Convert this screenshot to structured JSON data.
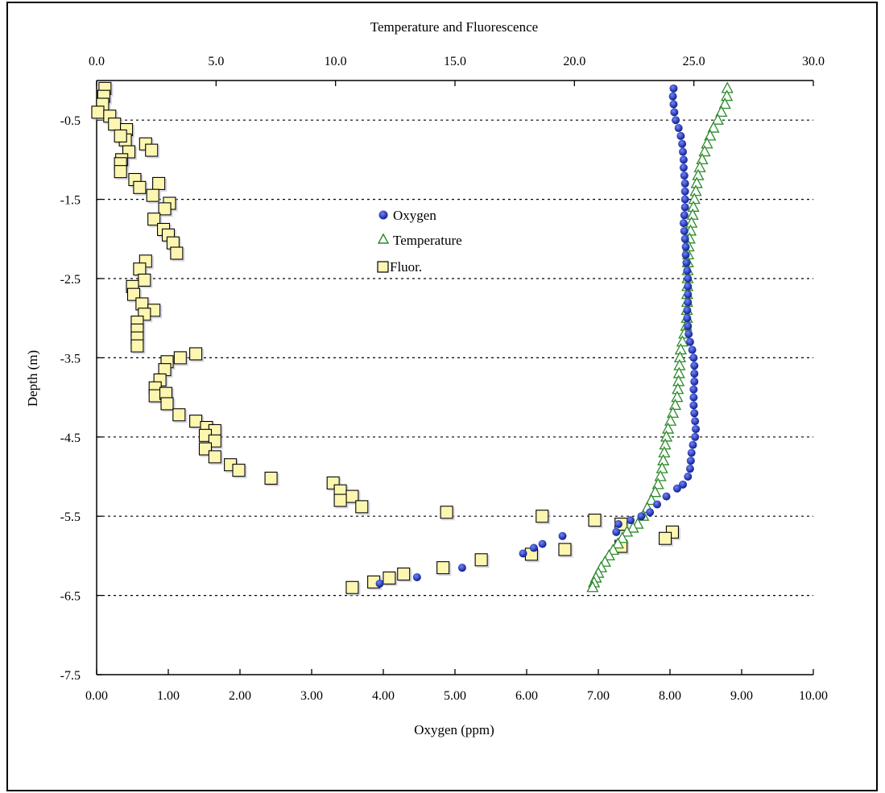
{
  "chart_data": {
    "type": "scatter",
    "title": "",
    "top_axis": {
      "label": "Temperature and Fluorescence",
      "lim": [
        0,
        30
      ],
      "ticks": [
        "0.0",
        "5.0",
        "10.0",
        "15.0",
        "20.0",
        "25.0",
        "30.0"
      ],
      "tick_values": [
        0,
        5,
        10,
        15,
        20,
        25,
        30
      ]
    },
    "bottom_axis": {
      "label": "Oxygen (ppm)",
      "lim": [
        0,
        10
      ],
      "ticks": [
        "0.00",
        "1.00",
        "2.00",
        "3.00",
        "4.00",
        "5.00",
        "6.00",
        "7.00",
        "8.00",
        "9.00",
        "10.00"
      ],
      "tick_values": [
        0,
        1,
        2,
        3,
        4,
        5,
        6,
        7,
        8,
        9,
        10
      ]
    },
    "y_axis": {
      "label": "Depth (m)",
      "lim": [
        -7.5,
        0
      ],
      "ticks": [
        "-0.5",
        "-1.5",
        "-2.5",
        "-3.5",
        "-4.5",
        "-5.5",
        "-6.5",
        "-7.5"
      ],
      "tick_values": [
        -0.5,
        -1.5,
        -2.5,
        -3.5,
        -4.5,
        -5.5,
        -6.5,
        -7.5
      ]
    },
    "grid": "horizontal dotted at labeled depths",
    "legend_placement": "center-upper",
    "series": [
      {
        "name": "Oxygen",
        "axis": "bottom",
        "marker": "circle",
        "color": "#1b2aa8",
        "points": [
          [
            8.05,
            -0.1
          ],
          [
            8.04,
            -0.2
          ],
          [
            8.05,
            -0.3
          ],
          [
            8.06,
            -0.4
          ],
          [
            8.08,
            -0.5
          ],
          [
            8.12,
            -0.6
          ],
          [
            8.15,
            -0.7
          ],
          [
            8.17,
            -0.8
          ],
          [
            8.18,
            -0.9
          ],
          [
            8.19,
            -1.0
          ],
          [
            8.19,
            -1.1
          ],
          [
            8.2,
            -1.2
          ],
          [
            8.21,
            -1.3
          ],
          [
            8.21,
            -1.4
          ],
          [
            8.21,
            -1.5
          ],
          [
            8.21,
            -1.6
          ],
          [
            8.2,
            -1.7
          ],
          [
            8.19,
            -1.8
          ],
          [
            8.2,
            -1.9
          ],
          [
            8.21,
            -2.0
          ],
          [
            8.22,
            -2.1
          ],
          [
            8.22,
            -2.2
          ],
          [
            8.23,
            -2.3
          ],
          [
            8.24,
            -2.4
          ],
          [
            8.25,
            -2.5
          ],
          [
            8.25,
            -2.6
          ],
          [
            8.25,
            -2.7
          ],
          [
            8.25,
            -2.8
          ],
          [
            8.24,
            -2.9
          ],
          [
            8.24,
            -3.0
          ],
          [
            8.25,
            -3.1
          ],
          [
            8.26,
            -3.2
          ],
          [
            8.28,
            -3.3
          ],
          [
            8.31,
            -3.4
          ],
          [
            8.33,
            -3.5
          ],
          [
            8.34,
            -3.6
          ],
          [
            8.34,
            -3.7
          ],
          [
            8.34,
            -3.8
          ],
          [
            8.33,
            -3.9
          ],
          [
            8.33,
            -4.0
          ],
          [
            8.33,
            -4.1
          ],
          [
            8.34,
            -4.2
          ],
          [
            8.35,
            -4.3
          ],
          [
            8.36,
            -4.4
          ],
          [
            8.35,
            -4.5
          ],
          [
            8.32,
            -4.6
          ],
          [
            8.3,
            -4.7
          ],
          [
            8.29,
            -4.8
          ],
          [
            8.28,
            -4.9
          ],
          [
            8.25,
            -5.0
          ],
          [
            8.18,
            -5.1
          ],
          [
            8.1,
            -5.15
          ],
          [
            7.95,
            -5.25
          ],
          [
            7.82,
            -5.35
          ],
          [
            7.72,
            -5.45
          ],
          [
            7.6,
            -5.5
          ],
          [
            7.45,
            -5.55
          ],
          [
            7.28,
            -5.6
          ],
          [
            7.25,
            -5.7
          ],
          [
            6.5,
            -5.75
          ],
          [
            6.22,
            -5.85
          ],
          [
            6.1,
            -5.9
          ],
          [
            5.95,
            -5.97
          ],
          [
            5.1,
            -6.15
          ],
          [
            4.47,
            -6.27
          ],
          [
            3.95,
            -6.35
          ]
        ]
      },
      {
        "name": "Temperature",
        "axis": "top",
        "marker": "triangle",
        "color": "#2a8a2a",
        "points": [
          [
            26.4,
            -0.1
          ],
          [
            26.38,
            -0.2
          ],
          [
            26.3,
            -0.3
          ],
          [
            26.15,
            -0.4
          ],
          [
            26.0,
            -0.5
          ],
          [
            25.82,
            -0.6
          ],
          [
            25.68,
            -0.7
          ],
          [
            25.55,
            -0.8
          ],
          [
            25.45,
            -0.9
          ],
          [
            25.35,
            -1.0
          ],
          [
            25.25,
            -1.1
          ],
          [
            25.18,
            -1.2
          ],
          [
            25.12,
            -1.3
          ],
          [
            25.08,
            -1.4
          ],
          [
            25.02,
            -1.5
          ],
          [
            24.98,
            -1.6
          ],
          [
            24.95,
            -1.7
          ],
          [
            24.9,
            -1.8
          ],
          [
            24.86,
            -1.9
          ],
          [
            24.82,
            -2.0
          ],
          [
            24.78,
            -2.1
          ],
          [
            24.76,
            -2.2
          ],
          [
            24.75,
            -2.3
          ],
          [
            24.74,
            -2.4
          ],
          [
            24.74,
            -2.5
          ],
          [
            24.73,
            -2.6
          ],
          [
            24.72,
            -2.7
          ],
          [
            24.72,
            -2.8
          ],
          [
            24.71,
            -2.9
          ],
          [
            24.71,
            -3.0
          ],
          [
            24.68,
            -3.1
          ],
          [
            24.6,
            -3.2
          ],
          [
            24.52,
            -3.3
          ],
          [
            24.45,
            -3.4
          ],
          [
            24.42,
            -3.5
          ],
          [
            24.4,
            -3.6
          ],
          [
            24.38,
            -3.7
          ],
          [
            24.36,
            -3.8
          ],
          [
            24.33,
            -3.9
          ],
          [
            24.3,
            -4.0
          ],
          [
            24.22,
            -4.1
          ],
          [
            24.12,
            -4.2
          ],
          [
            24.02,
            -4.3
          ],
          [
            23.92,
            -4.4
          ],
          [
            23.85,
            -4.5
          ],
          [
            23.8,
            -4.6
          ],
          [
            23.76,
            -4.7
          ],
          [
            23.72,
            -4.8
          ],
          [
            23.67,
            -4.9
          ],
          [
            23.6,
            -5.0
          ],
          [
            23.5,
            -5.1
          ],
          [
            23.38,
            -5.2
          ],
          [
            23.22,
            -5.3
          ],
          [
            23.05,
            -5.4
          ],
          [
            22.88,
            -5.5
          ],
          [
            22.65,
            -5.6
          ],
          [
            22.45,
            -5.65
          ],
          [
            22.2,
            -5.7
          ],
          [
            22.0,
            -5.78
          ],
          [
            21.82,
            -5.85
          ],
          [
            21.62,
            -5.93
          ],
          [
            21.45,
            -6.0
          ],
          [
            21.28,
            -6.08
          ],
          [
            21.12,
            -6.15
          ],
          [
            21.0,
            -6.22
          ],
          [
            20.9,
            -6.28
          ],
          [
            20.82,
            -6.34
          ],
          [
            20.76,
            -6.4
          ]
        ]
      },
      {
        "name": "Fluor.",
        "axis": "top",
        "marker": "square",
        "color": "#fdf6b0",
        "points": [
          [
            0.35,
            -0.1
          ],
          [
            0.3,
            -0.2
          ],
          [
            0.25,
            -0.3
          ],
          [
            0.05,
            -0.4
          ],
          [
            0.55,
            -0.45
          ],
          [
            0.75,
            -0.55
          ],
          [
            1.25,
            -0.62
          ],
          [
            1.2,
            -0.75
          ],
          [
            1.0,
            -0.7
          ],
          [
            2.05,
            -0.8
          ],
          [
            2.3,
            -0.88
          ],
          [
            1.35,
            -0.9
          ],
          [
            1.05,
            -1.0
          ],
          [
            1.0,
            -1.05
          ],
          [
            1.0,
            -1.15
          ],
          [
            1.6,
            -1.25
          ],
          [
            1.8,
            -1.35
          ],
          [
            2.6,
            -1.3
          ],
          [
            2.35,
            -1.45
          ],
          [
            3.05,
            -1.55
          ],
          [
            2.85,
            -1.62
          ],
          [
            2.4,
            -1.75
          ],
          [
            2.8,
            -1.88
          ],
          [
            3.0,
            -1.95
          ],
          [
            3.2,
            -2.05
          ],
          [
            3.35,
            -2.18
          ],
          [
            2.05,
            -2.28
          ],
          [
            1.8,
            -2.38
          ],
          [
            2.0,
            -2.52
          ],
          [
            1.5,
            -2.6
          ],
          [
            1.55,
            -2.7
          ],
          [
            1.9,
            -2.82
          ],
          [
            2.4,
            -2.9
          ],
          [
            2.0,
            -2.95
          ],
          [
            1.7,
            -3.05
          ],
          [
            1.7,
            -3.15
          ],
          [
            1.7,
            -3.25
          ],
          [
            1.7,
            -3.35
          ],
          [
            4.15,
            -3.45
          ],
          [
            3.5,
            -3.5
          ],
          [
            2.95,
            -3.55
          ],
          [
            2.85,
            -3.65
          ],
          [
            2.65,
            -3.78
          ],
          [
            2.45,
            -3.88
          ],
          [
            2.45,
            -3.98
          ],
          [
            2.9,
            -3.95
          ],
          [
            2.95,
            -4.08
          ],
          [
            3.45,
            -4.22
          ],
          [
            4.15,
            -4.3
          ],
          [
            4.6,
            -4.38
          ],
          [
            4.95,
            -4.42
          ],
          [
            4.55,
            -4.48
          ],
          [
            4.95,
            -4.55
          ],
          [
            4.55,
            -4.65
          ],
          [
            4.95,
            -4.75
          ],
          [
            5.6,
            -4.85
          ],
          [
            5.95,
            -4.92
          ],
          [
            7.3,
            -5.02
          ],
          [
            9.9,
            -5.08
          ],
          [
            10.2,
            -5.18
          ],
          [
            10.7,
            -5.25
          ],
          [
            10.2,
            -5.3
          ],
          [
            11.1,
            -5.38
          ],
          [
            14.65,
            -5.45
          ],
          [
            18.65,
            -5.5
          ],
          [
            20.85,
            -5.55
          ],
          [
            21.95,
            -5.6
          ],
          [
            24.1,
            -5.7
          ],
          [
            23.8,
            -5.78
          ],
          [
            21.95,
            -5.88
          ],
          [
            19.6,
            -5.92
          ],
          [
            18.2,
            -5.98
          ],
          [
            16.1,
            -6.05
          ],
          [
            14.5,
            -6.15
          ],
          [
            12.85,
            -6.23
          ],
          [
            12.25,
            -6.28
          ],
          [
            11.6,
            -6.33
          ],
          [
            10.7,
            -6.4
          ]
        ]
      }
    ]
  }
}
